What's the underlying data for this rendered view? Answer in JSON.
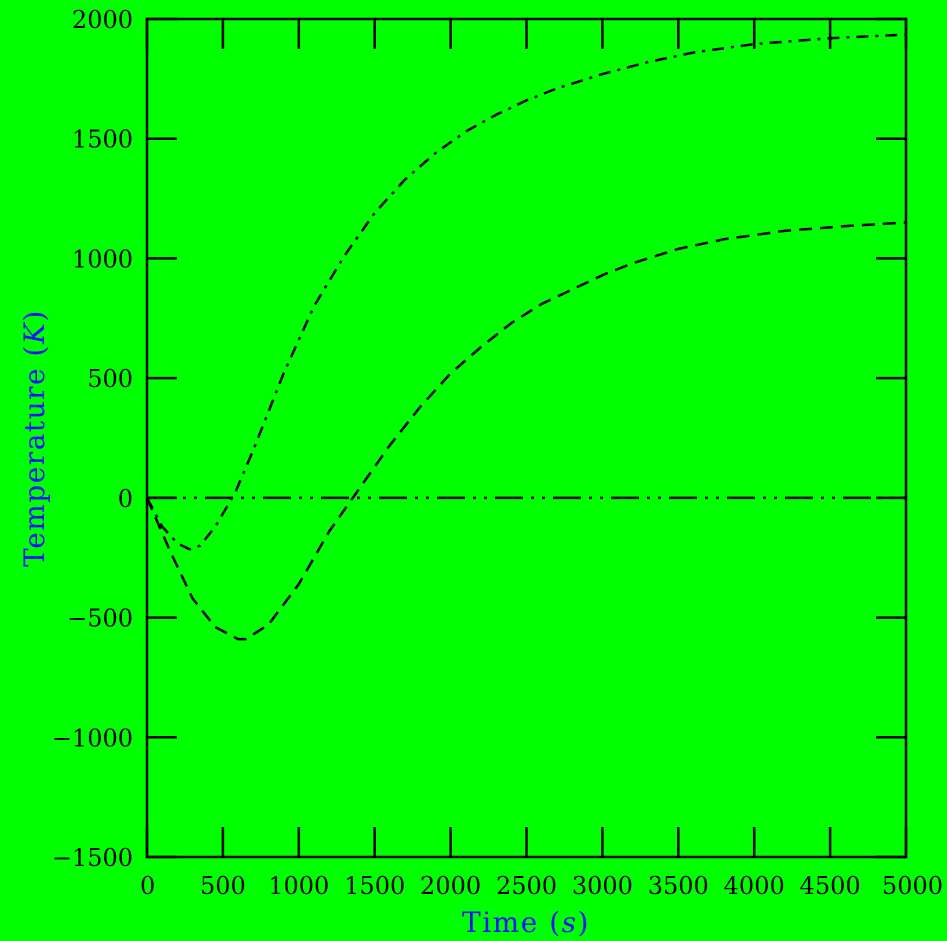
{
  "colors": {
    "background": "#00ff00",
    "axis": "#000000",
    "axis_title": "#1010ff"
  },
  "chart_data": {
    "type": "line",
    "xlabel_text": "Time",
    "xlabel_unit": "s",
    "ylabel_text": "Temperature",
    "ylabel_unit": "K",
    "xlim": [
      0,
      5000
    ],
    "ylim": [
      -1500,
      2000
    ],
    "xticks": [
      "0",
      "500",
      "1000",
      "1500",
      "2000",
      "2500",
      "3000",
      "3500",
      "4000",
      "4500",
      "5000"
    ],
    "yticks": [
      "−1500",
      "−1000",
      "−500",
      "0",
      "500",
      "1000",
      "1500",
      "2000"
    ],
    "grid": false,
    "legend": "none",
    "series": [
      {
        "line_style": "dash-dot",
        "x": [
          0,
          100,
          200,
          280,
          350,
          450,
          580,
          700,
          900,
          1100,
          1300,
          1500,
          1700,
          1900,
          2100,
          2300,
          2500,
          2700,
          3000,
          3300,
          3600,
          4000,
          4500,
          5000
        ],
        "y": [
          0,
          -120,
          -190,
          -215,
          -200,
          -120,
          20,
          200,
          520,
          800,
          1010,
          1190,
          1330,
          1440,
          1530,
          1600,
          1660,
          1710,
          1770,
          1820,
          1860,
          1895,
          1920,
          1935
        ]
      },
      {
        "line_style": "dash",
        "x": [
          0,
          150,
          300,
          450,
          600,
          650,
          800,
          1000,
          1200,
          1400,
          1600,
          1800,
          2000,
          2200,
          2400,
          2600,
          2800,
          3000,
          3200,
          3500,
          3800,
          4200,
          4600,
          5000
        ],
        "y": [
          0,
          -220,
          -420,
          -540,
          -590,
          -590,
          -530,
          -360,
          -140,
          40,
          220,
          380,
          520,
          630,
          730,
          810,
          870,
          930,
          980,
          1040,
          1080,
          1115,
          1135,
          1150
        ]
      },
      {
        "line_style": "dash-dot-dot",
        "x": [
          0,
          5000
        ],
        "y": [
          0,
          0
        ]
      }
    ]
  }
}
